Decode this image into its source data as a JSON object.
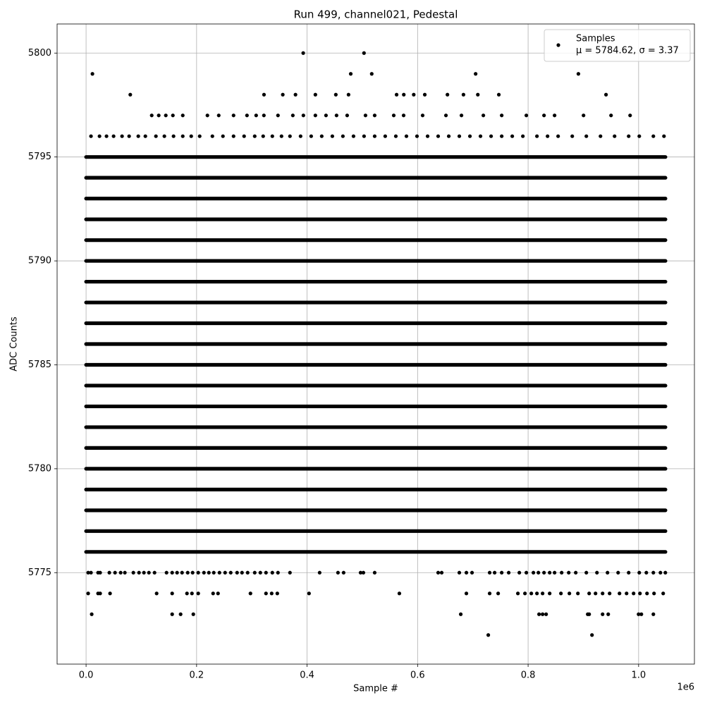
{
  "chart_data": {
    "type": "scatter",
    "title": "Run 499, channel021, Pedestal",
    "xlabel": "Sample #",
    "ylabel": "ADC Counts",
    "x_offset_label": "1e6",
    "series": [
      {
        "name": "Samples",
        "stats": "μ = 5784.62, σ = 3.37",
        "color": "#000000"
      }
    ],
    "xlim": [
      -52429,
      1101004
    ],
    "ylim": [
      5770.6,
      5801.4
    ],
    "xticks": [
      {
        "value": 0,
        "label": "0.0"
      },
      {
        "value": 200000,
        "label": "0.2"
      },
      {
        "value": 400000,
        "label": "0.4"
      },
      {
        "value": 600000,
        "label": "0.6"
      },
      {
        "value": 800000,
        "label": "0.8"
      },
      {
        "value": 1000000,
        "label": "1.0"
      }
    ],
    "yticks": [
      5775,
      5780,
      5785,
      5790,
      5795,
      5800
    ],
    "grid": true,
    "legend": "upper right",
    "x_range": [
      0,
      1048575
    ],
    "levels": [
      5776,
      5777,
      5778,
      5779,
      5780,
      5781,
      5782,
      5783,
      5784,
      5785,
      5786,
      5787,
      5788,
      5789,
      5790,
      5791,
      5792,
      5793,
      5794,
      5795
    ],
    "outliers": [
      {
        "y": 5800,
        "x": [
          393000,
          503000
        ]
      },
      {
        "y": 5799,
        "x": [
          11500,
          479000,
          517000,
          705000,
          891000
        ]
      },
      {
        "y": 5798,
        "x": [
          80000,
          322000,
          356000,
          379000,
          415000,
          452000,
          475000,
          562000,
          575000,
          593000,
          613000,
          654000,
          683000,
          709000,
          747000,
          941000
        ]
      },
      {
        "y": 5797,
        "x": [
          118800,
          131500,
          144300,
          157100,
          175000,
          219600,
          240100,
          266900,
          291200,
          307800,
          321800,
          347300,
          374200,
          393300,
          415000,
          434200,
          453300,
          472500,
          505700,
          522300,
          556800,
          574700,
          609100,
          651300,
          679400,
          719000,
          752200,
          796800,
          828800,
          847900,
          900300,
          950100,
          984600
        ]
      },
      {
        "y": 5796,
        "x": [
          8900,
          24300,
          37000,
          49800,
          65100,
          77900,
          94500,
          107300,
          126400,
          141700,
          158300,
          175000,
          190300,
          205600,
          228600,
          247700,
          266900,
          286000,
          305200,
          320500,
          337100,
          353700,
          369000,
          388200,
          407400,
          426500,
          445700,
          464800,
          484000,
          503100,
          522300,
          541400,
          560600,
          579800,
          598900,
          618100,
          637200,
          656400,
          675500,
          694700,
          713800,
          733000,
          752200,
          771300,
          790500,
          816000,
          835200,
          854300,
          879900,
          905400,
          931000,
          956500,
          982000,
          1001200,
          1026700,
          1045900
        ]
      },
      {
        "y": 5775,
        "x": [
          3800,
          8900,
          21700,
          25500,
          42100,
          52400,
          62600,
          70200,
          85600,
          95800,
          104700,
          113700,
          123900,
          145600,
          155800,
          164700,
          173700,
          183900,
          192800,
          203000,
          213300,
          222200,
          231100,
          241400,
          251600,
          261800,
          273300,
          282200,
          292400,
          305200,
          315400,
          325600,
          337100,
          347300,
          369000,
          422700,
          455900,
          466100,
          496800,
          501900,
          522300,
          637200,
          643600,
          675500,
          688300,
          698500,
          730400,
          739400,
          752200,
          764900,
          784100,
          796800,
          809600,
          818600,
          828800,
          839000,
          847900,
          860700,
          873500,
          886200,
          905400,
          924600,
          943700,
          962900,
          982000,
          1001200,
          1014000,
          1026700,
          1039500,
          1048400
        ]
      },
      {
        "y": 5774,
        "x": [
          3800,
          21700,
          25500,
          43400,
          127700,
          155800,
          182600,
          191600,
          203000,
          229900,
          238800,
          297500,
          325600,
          335900,
          346100,
          403500,
          567000,
          688300,
          730400,
          745800,
          781500,
          794300,
          805800,
          816000,
          826200,
          839000,
          859400,
          874700,
          890100,
          910500,
          922000,
          934800,
          947500,
          965400,
          978200,
          990900,
          1002400,
          1015200,
          1027900,
          1044500
        ]
      },
      {
        "y": 5773,
        "x": [
          10200,
          155800,
          171100,
          194100,
          678100,
          819800,
          826200,
          832600,
          907900,
          910500,
          934800,
          945000,
          999900,
          1005000,
          1026700
        ]
      },
      {
        "y": 5772,
        "x": [
          727900,
          915600
        ]
      }
    ]
  }
}
